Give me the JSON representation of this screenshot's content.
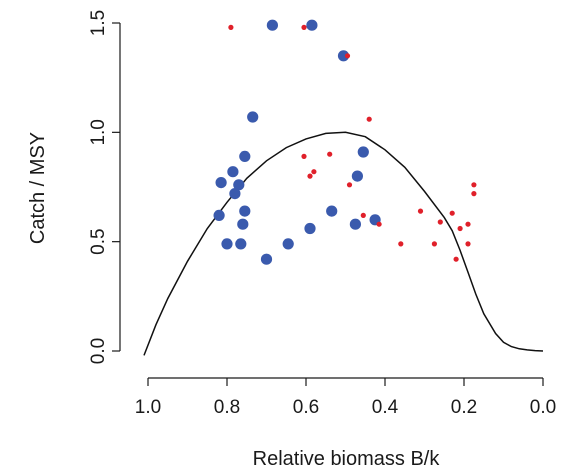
{
  "chart_data": {
    "type": "scatter",
    "title": "",
    "xlabel": "Relative biomass B/k",
    "ylabel": "Catch / MSY",
    "xlim": [
      1.0,
      0.0
    ],
    "ylim": [
      0.0,
      1.5
    ],
    "x_reversed": true,
    "x_ticks": [
      "1.0",
      "0.8",
      "0.6",
      "0.4",
      "0.2",
      "0.0"
    ],
    "y_ticks": [
      "0.0",
      "0.5",
      "1.0",
      "1.5"
    ],
    "grid": false,
    "legend": "none",
    "colors": {
      "large_points": "#3a5aad",
      "small_points": "#e0202a",
      "curve": "#111111",
      "axis": "#1a1a1a"
    },
    "curve": {
      "name": "",
      "x": [
        1.01,
        0.98,
        0.95,
        0.9,
        0.85,
        0.8,
        0.75,
        0.7,
        0.65,
        0.6,
        0.55,
        0.5,
        0.45,
        0.4,
        0.35,
        0.3,
        0.25,
        0.23,
        0.21,
        0.19,
        0.17,
        0.15,
        0.12,
        0.1,
        0.08,
        0.06,
        0.04,
        0.02,
        0.0
      ],
      "y": [
        -0.02,
        0.12,
        0.24,
        0.41,
        0.56,
        0.68,
        0.79,
        0.87,
        0.93,
        0.97,
        0.995,
        1.0,
        0.98,
        0.92,
        0.84,
        0.73,
        0.61,
        0.55,
        0.46,
        0.36,
        0.26,
        0.17,
        0.08,
        0.04,
        0.02,
        0.01,
        0.005,
        0.002,
        0.0
      ]
    },
    "series": [
      {
        "name": "",
        "style": "large",
        "x": [
          0.685,
          0.585,
          0.505,
          0.735,
          0.755,
          0.785,
          0.815,
          0.77,
          0.78,
          0.82,
          0.755,
          0.76,
          0.8,
          0.765,
          0.7,
          0.645,
          0.59,
          0.535,
          0.475,
          0.47,
          0.455,
          0.425
        ],
        "y": [
          1.49,
          1.49,
          1.35,
          1.07,
          0.89,
          0.82,
          0.77,
          0.76,
          0.72,
          0.62,
          0.64,
          0.58,
          0.49,
          0.49,
          0.42,
          0.49,
          0.56,
          0.64,
          0.58,
          0.8,
          0.91,
          0.6
        ]
      },
      {
        "name": "",
        "style": "small",
        "x": [
          0.79,
          0.605,
          0.495,
          0.44,
          0.605,
          0.58,
          0.59,
          0.54,
          0.49,
          0.455,
          0.415,
          0.36,
          0.31,
          0.275,
          0.26,
          0.23,
          0.21,
          0.19,
          0.175,
          0.175,
          0.19,
          0.22
        ],
        "y": [
          1.48,
          1.48,
          1.35,
          1.06,
          0.89,
          0.82,
          0.8,
          0.9,
          0.76,
          0.62,
          0.58,
          0.49,
          0.64,
          0.49,
          0.59,
          0.63,
          0.56,
          0.58,
          0.76,
          0.72,
          0.49,
          0.42
        ]
      }
    ]
  }
}
